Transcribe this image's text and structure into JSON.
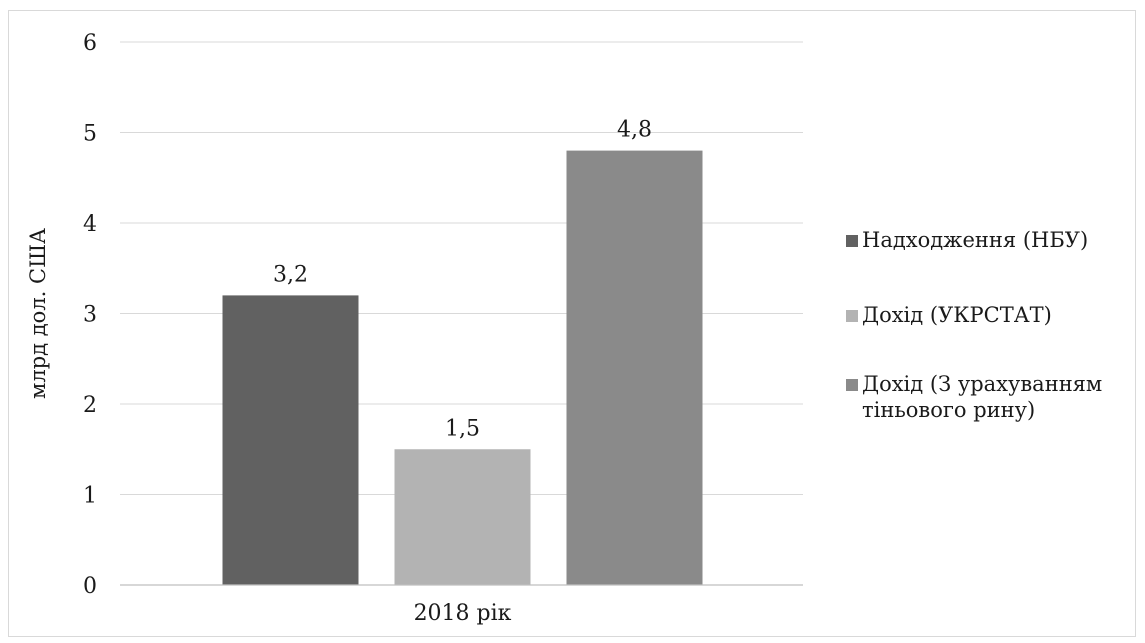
{
  "chart_data": {
    "type": "bar",
    "title": "",
    "xlabel": "",
    "ylabel": "млрд дол. США",
    "ylim": [
      0,
      6
    ],
    "yticks": [
      0,
      1,
      2,
      3,
      4,
      5,
      6
    ],
    "categories": [
      "2018 рік"
    ],
    "grid": true,
    "legend_position": "right",
    "series": [
      {
        "name": "Надходження (НБУ)",
        "values": [
          3.2
        ],
        "label": "3,2",
        "color": "#616161"
      },
      {
        "name": "Дохід (УКРСТАТ)",
        "values": [
          1.5
        ],
        "label": "1,5",
        "color": "#b3b3b3"
      },
      {
        "name": "Дохід (З урахуванням тіньового рину)",
        "values": [
          4.8
        ],
        "label": "4,8",
        "color": "#8a8a8a"
      }
    ],
    "legend_lines": [
      [
        "Надходження (НБУ)"
      ],
      [
        "Дохід (УКРСТАТ)"
      ],
      [
        "Дохід (З урахуванням",
        "тіньового рину)"
      ]
    ]
  }
}
